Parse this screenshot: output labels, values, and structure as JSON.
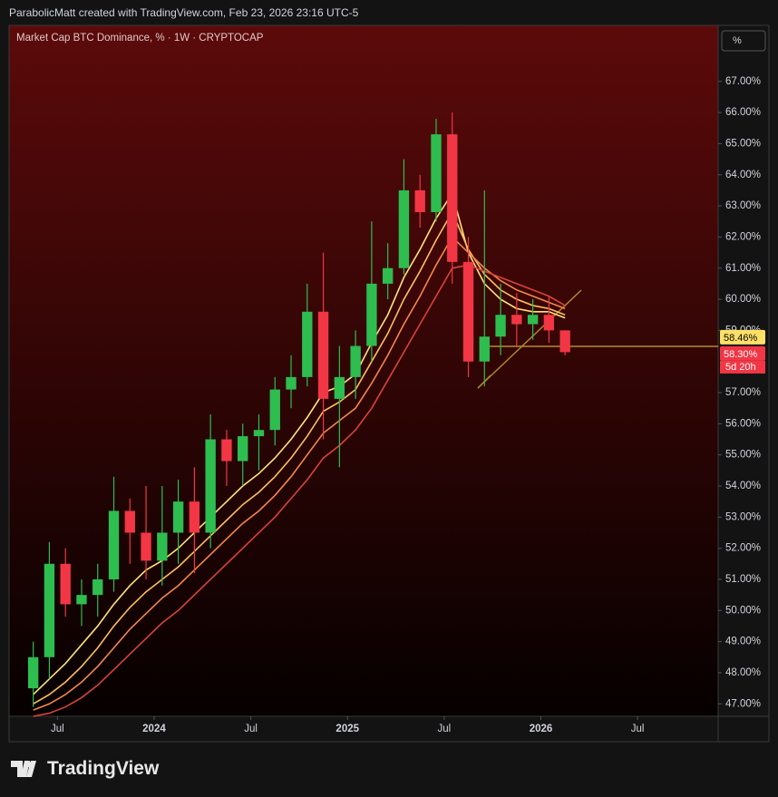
{
  "header": "ParabolicMatt created with TradingView.com, Feb 23, 2026 23:16 UTC-5",
  "scale_mode": "%",
  "brand": "TradingView",
  "chart_data": {
    "type": "candlestick",
    "title": "Market Cap BTC Dominance, % · 1W · CRYPTOCAP",
    "x": [
      "2023-05",
      "2023-06",
      "2023-07",
      "2023-08",
      "2023-09",
      "2023-10",
      "2023-11",
      "2023-12",
      "2024-01",
      "2024-02",
      "2024-03",
      "2024-04",
      "2024-05",
      "2024-06",
      "2024-07",
      "2024-08",
      "2024-09",
      "2024-10",
      "2024-11",
      "2024-12",
      "2025-01",
      "2025-02",
      "2025-03",
      "2025-04",
      "2025-05",
      "2025-06",
      "2025-07",
      "2025-08",
      "2025-09",
      "2025-10",
      "2025-11",
      "2025-12",
      "2026-01",
      "2026-02"
    ],
    "open": [
      47.5,
      48.5,
      51.5,
      50.2,
      50.5,
      51.0,
      53.2,
      52.5,
      51.6,
      52.5,
      53.5,
      52.5,
      55.5,
      54.8,
      55.6,
      55.8,
      57.1,
      57.5,
      59.6,
      56.8,
      57.5,
      58.5,
      60.5,
      61.0,
      63.5,
      62.8,
      65.3,
      61.2,
      58.0,
      58.8,
      59.5,
      59.2,
      59.5,
      59.0
    ],
    "high": [
      49.0,
      52.2,
      52.0,
      51.0,
      51.5,
      54.3,
      53.6,
      54.0,
      54.0,
      54.2,
      54.6,
      56.3,
      55.8,
      56.0,
      56.3,
      57.5,
      58.2,
      60.5,
      61.5,
      58.5,
      59.0,
      62.5,
      61.8,
      64.5,
      64.0,
      65.8,
      66.0,
      62.0,
      63.5,
      60.5,
      60.2,
      60.0,
      60.1,
      59.0
    ],
    "low": [
      46.9,
      47.8,
      49.8,
      49.5,
      49.8,
      50.6,
      51.5,
      51.0,
      50.8,
      51.5,
      51.2,
      52.0,
      54.0,
      54.0,
      54.5,
      55.3,
      56.5,
      57.2,
      55.5,
      54.6,
      56.8,
      58.0,
      60.0,
      60.8,
      62.3,
      62.5,
      60.5,
      57.5,
      57.2,
      58.2,
      58.5,
      58.7,
      58.6,
      58.2
    ],
    "close": [
      48.5,
      51.5,
      50.2,
      50.5,
      51.0,
      53.2,
      52.5,
      51.6,
      52.5,
      53.5,
      52.5,
      55.5,
      54.8,
      55.6,
      55.8,
      57.1,
      57.5,
      59.6,
      56.8,
      57.5,
      58.5,
      60.5,
      61.0,
      63.5,
      62.8,
      65.3,
      61.2,
      58.0,
      58.8,
      59.5,
      59.2,
      59.5,
      59.0,
      58.3
    ],
    "up_color": "#2ebd4f",
    "down_color": "#f23645",
    "series": [
      {
        "color": "#ffe27a",
        "values": [
          47.3,
          47.8,
          48.3,
          48.9,
          49.5,
          50.2,
          50.8,
          51.3,
          51.6,
          52.0,
          52.5,
          53.0,
          53.5,
          54.0,
          54.4,
          54.9,
          55.5,
          56.2,
          57.0,
          57.2,
          57.6,
          58.6,
          59.5,
          60.7,
          61.6,
          62.6,
          63.4,
          61.5,
          60.5,
          60.0,
          59.7,
          59.6,
          59.6,
          59.4
        ]
      },
      {
        "color": "#ffbf5e",
        "values": [
          47.0,
          47.3,
          47.7,
          48.2,
          48.8,
          49.5,
          50.1,
          50.6,
          51.0,
          51.4,
          51.9,
          52.4,
          52.9,
          53.4,
          53.8,
          54.3,
          54.9,
          55.6,
          56.4,
          56.7,
          57.1,
          58.0,
          58.9,
          60.0,
          60.9,
          61.9,
          62.8,
          61.6,
          60.8,
          60.3,
          60.0,
          59.8,
          59.7,
          59.5
        ]
      },
      {
        "color": "#f5874a",
        "values": [
          46.8,
          47.0,
          47.3,
          47.7,
          48.2,
          48.8,
          49.4,
          49.9,
          50.4,
          50.8,
          51.3,
          51.8,
          52.3,
          52.8,
          53.2,
          53.7,
          54.3,
          55.0,
          55.7,
          56.1,
          56.5,
          57.3,
          58.2,
          59.2,
          60.1,
          61.1,
          62.0,
          61.5,
          61.0,
          60.6,
          60.3,
          60.1,
          59.9,
          59.7
        ]
      },
      {
        "color": "#d9433a",
        "values": [
          46.6,
          46.7,
          46.9,
          47.2,
          47.6,
          48.1,
          48.6,
          49.1,
          49.6,
          50.0,
          50.5,
          51.0,
          51.5,
          52.0,
          52.5,
          53.0,
          53.6,
          54.2,
          54.9,
          55.3,
          55.8,
          56.5,
          57.4,
          58.3,
          59.2,
          60.1,
          61.0,
          61.1,
          60.9,
          60.7,
          60.5,
          60.3,
          60.1,
          59.8
        ]
      }
    ],
    "xlim": [
      "2023-04",
      "2026-12"
    ],
    "xticks": [
      {
        "value": "2023-07",
        "label": "Jul"
      },
      {
        "value": "2024-01",
        "label": "2024"
      },
      {
        "value": "2024-07",
        "label": "Jul"
      },
      {
        "value": "2025-01",
        "label": "2025"
      },
      {
        "value": "2025-07",
        "label": "Jul"
      },
      {
        "value": "2026-01",
        "label": "2026"
      },
      {
        "value": "2026-07",
        "label": "Jul"
      }
    ],
    "ylim": [
      46.6,
      68.8
    ],
    "yticks": [
      {
        "value": 47,
        "label": "47.00%"
      },
      {
        "value": 48,
        "label": "48.00%"
      },
      {
        "value": 49,
        "label": "49.00%"
      },
      {
        "value": 50,
        "label": "50.00%"
      },
      {
        "value": 51,
        "label": "51.00%"
      },
      {
        "value": 52,
        "label": "52.00%"
      },
      {
        "value": 53,
        "label": "53.00%"
      },
      {
        "value": 54,
        "label": "54.00%"
      },
      {
        "value": 55,
        "label": "55.00%"
      },
      {
        "value": 56,
        "label": "56.00%"
      },
      {
        "value": 57,
        "label": "57.00%"
      },
      {
        "value": 59,
        "label": "59.00%"
      },
      {
        "value": 60,
        "label": "60.00%"
      },
      {
        "value": 61,
        "label": "61.00%"
      },
      {
        "value": 62,
        "label": "62.00%"
      },
      {
        "value": 63,
        "label": "63.00%"
      },
      {
        "value": 64,
        "label": "64.00%"
      },
      {
        "value": 65,
        "label": "65.00%"
      },
      {
        "value": 66,
        "label": "66.00%"
      },
      {
        "value": 67,
        "label": "67.00%"
      }
    ],
    "price_labels": [
      {
        "value": 58.46,
        "label": "58.46%",
        "color": "#ffe066",
        "text_color": "#000000"
      },
      {
        "value": 58.3,
        "label": "58.30%",
        "color": "#f23645",
        "text_color": "#ffffff"
      }
    ],
    "countdown": "5d 20h"
  }
}
